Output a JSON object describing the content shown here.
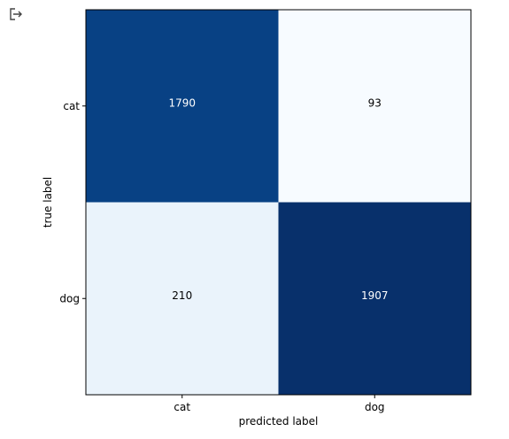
{
  "toolbar": {
    "output_icon": "exit-to-app-icon"
  },
  "chart_data": {
    "type": "heatmap",
    "xlabel": "predicted label",
    "ylabel": "true label",
    "x_categories": [
      "cat",
      "dog"
    ],
    "y_categories": [
      "cat",
      "dog"
    ],
    "matrix": [
      [
        1790,
        93
      ],
      [
        210,
        1907
      ]
    ],
    "colormap": "Blues",
    "vmin": 93,
    "vmax": 1907,
    "colors": {
      "high": "#08306b",
      "low": "#f7fbff",
      "axis": "#000000"
    },
    "grid": false
  }
}
